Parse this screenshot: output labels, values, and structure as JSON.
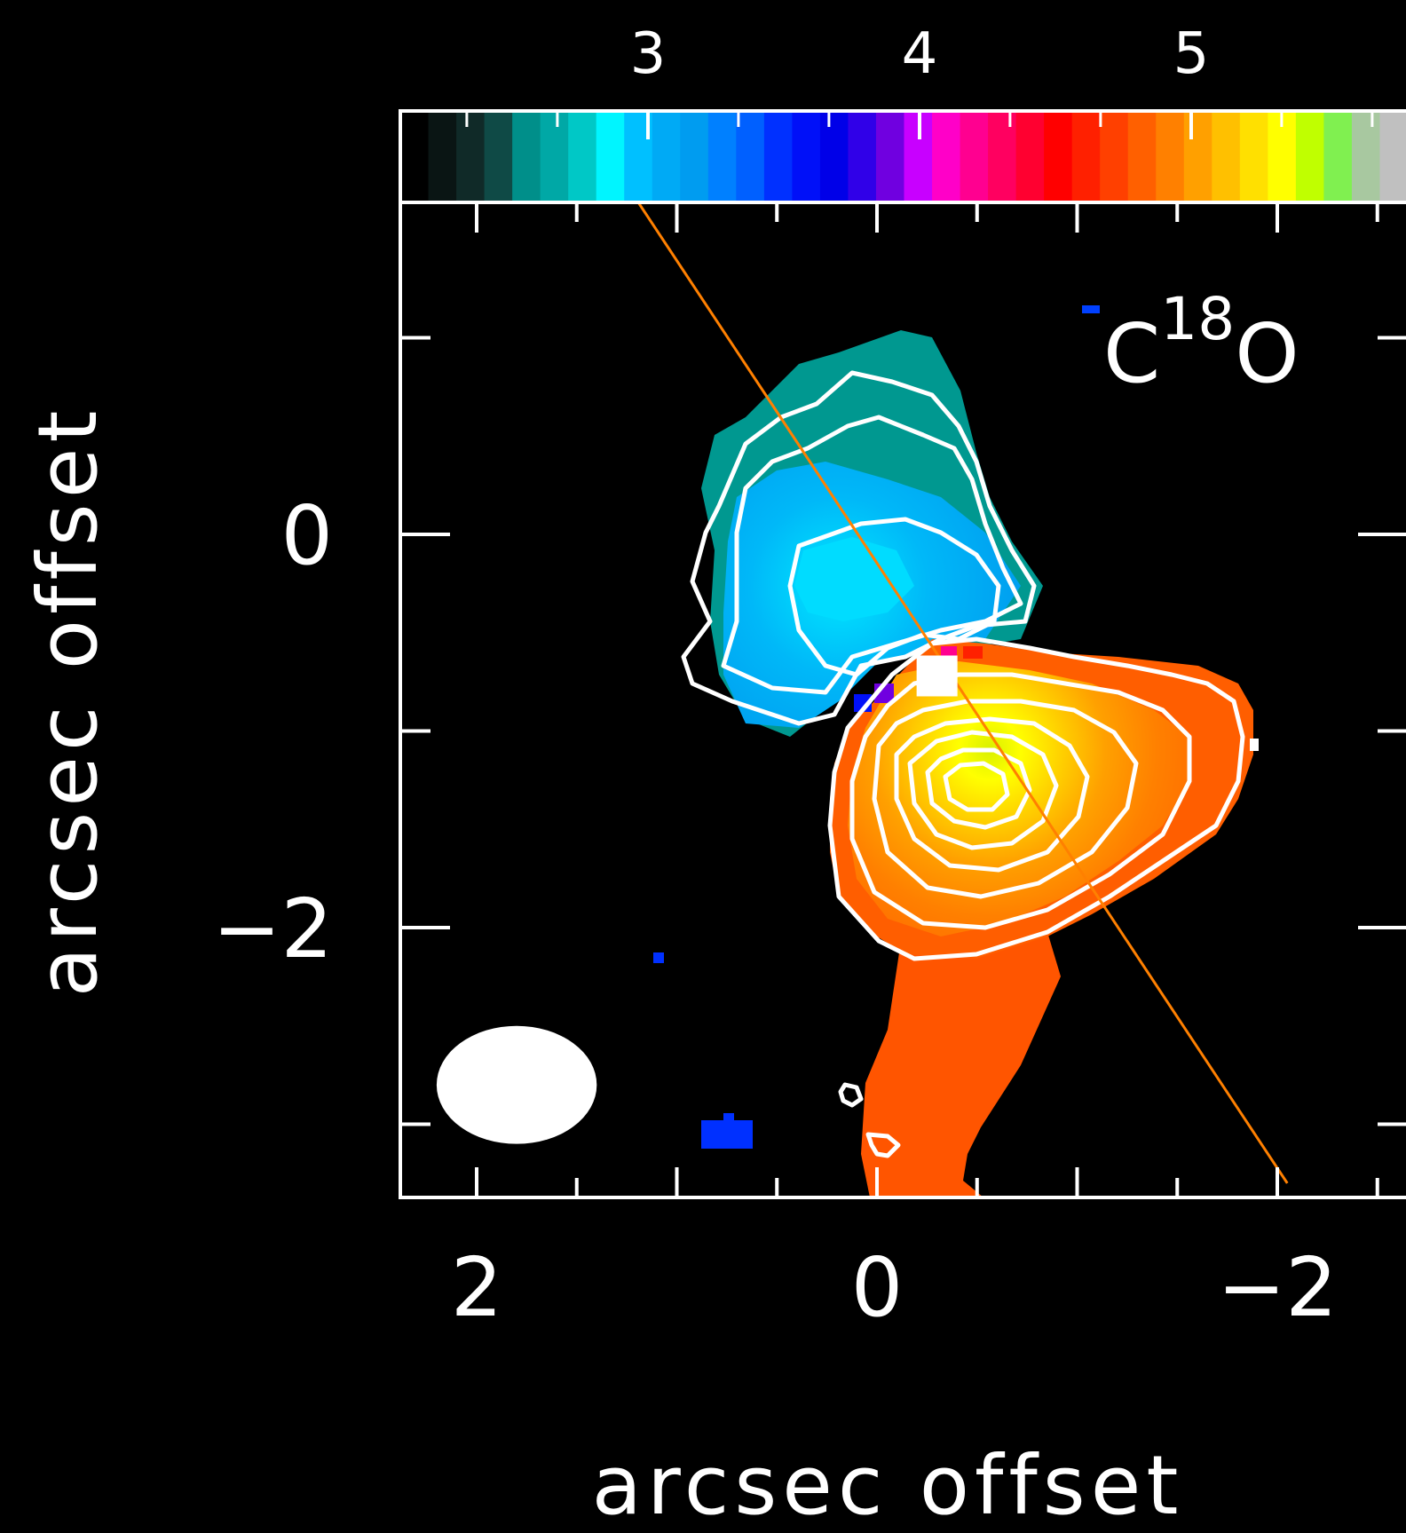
{
  "chart_data": {
    "type": "heatmap",
    "title": "",
    "molecule_label": {
      "base": "C",
      "superscript": "18",
      "suffix": "O"
    },
    "xlabel": "arcsec offset",
    "ylabel": "arcsec offset",
    "x_ticks": [
      2,
      0,
      -2
    ],
    "x_tick_labels": [
      "2",
      "0",
      "−2"
    ],
    "y_ticks": [
      0,
      -2
    ],
    "y_tick_labels": [
      "0",
      "−2"
    ],
    "xlim": [
      2.4,
      -2.6
    ],
    "ylim": [
      -3.3,
      1.7
    ],
    "colorbar": {
      "range": [
        2.0,
        5.8
      ],
      "ticks": [
        3,
        4,
        5
      ],
      "tick_labels": [
        "3",
        "4",
        "5"
      ],
      "colors": [
        "#000000",
        "#0a1514",
        "#102a28",
        "#0f4a46",
        "#008f8a",
        "#00a8a6",
        "#00c8c6",
        "#00f5ff",
        "#00c0ff",
        "#00aaf5",
        "#009cf0",
        "#0080ff",
        "#0060ff",
        "#0030ff",
        "#0010f8",
        "#0000e8",
        "#3000e8",
        "#7000e0",
        "#c800ff",
        "#ff00c8",
        "#ff0090",
        "#ff0060",
        "#ff0030",
        "#ff0000",
        "#ff2000",
        "#ff4000",
        "#ff6000",
        "#ff8000",
        "#ffa000",
        "#ffc000",
        "#ffe000",
        "#ffff00",
        "#c0ff00",
        "#80f050",
        "#a8c8a0",
        "#c0c0c0"
      ]
    },
    "beam": {
      "center": [
        1.8,
        -2.8
      ],
      "width_arcsec": 0.8,
      "height_arcsec": 0.6
    },
    "axis_line": {
      "start": [
        1.2,
        1.7
      ],
      "end": [
        -2.05,
        -3.3
      ],
      "color": "#ff8000"
    },
    "source_marker": [
      -0.3,
      -0.72
    ],
    "blue_lobe": {
      "color": "#00a8f0",
      "inner_color": "#00d8ff",
      "peak": [
        0.2,
        -0.2
      ]
    },
    "red_lobe": {
      "color": "#ff5a00",
      "mid_color": "#ff8c00",
      "core_color": "#d8f000",
      "peak": [
        -0.5,
        -1.1
      ]
    }
  }
}
